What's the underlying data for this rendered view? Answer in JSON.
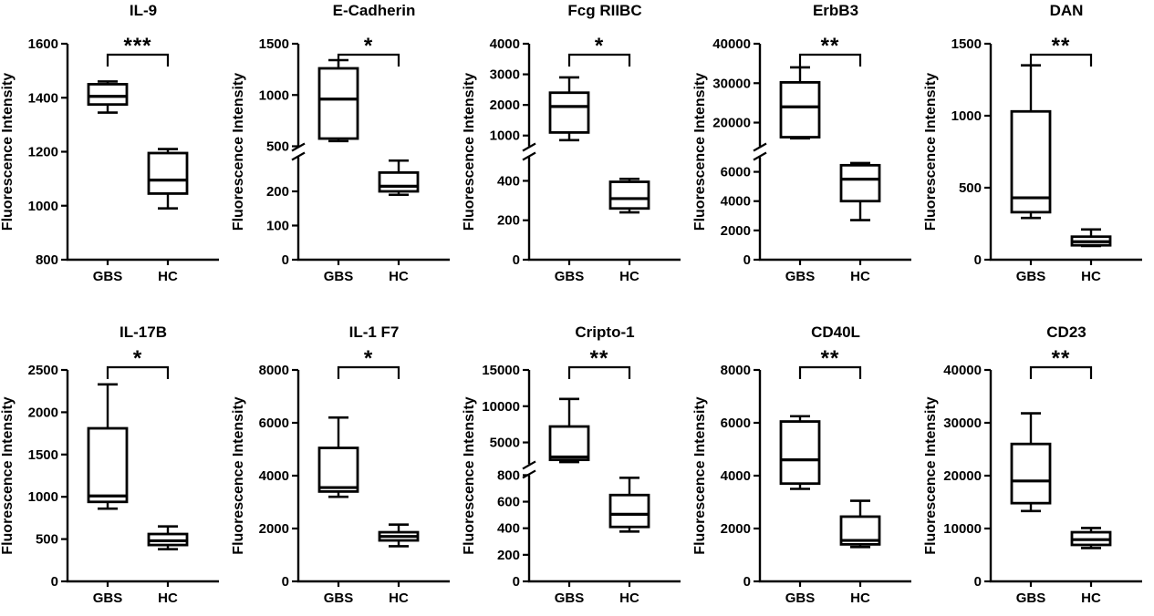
{
  "figure": {
    "ylabel": "Fluorescence Intensity",
    "categories": [
      "GBS",
      "HC"
    ],
    "colors": {
      "stroke": "#000000",
      "box_fill": "#ffffff",
      "background": "#ffffff"
    }
  },
  "chart_data": [
    {
      "type": "box",
      "title": "IL-9",
      "significance": "***",
      "ylabel": "Fluorescence Intensity",
      "categories": [
        "GBS",
        "HC"
      ],
      "axis_segments": [
        {
          "range": [
            800,
            1600
          ],
          "ticks": [
            800,
            1000,
            1200,
            1400,
            1600
          ],
          "frac": 1
        }
      ],
      "boxes": [
        {
          "group": "GBS",
          "min": 1345,
          "q1": 1375,
          "median": 1405,
          "q3": 1450,
          "max": 1460
        },
        {
          "group": "HC",
          "min": 990,
          "q1": 1045,
          "median": 1095,
          "q3": 1195,
          "max": 1210
        }
      ]
    },
    {
      "type": "box",
      "title": "E-Cadherin",
      "significance": "*",
      "ylabel": "Fluorescence Intensity",
      "categories": [
        "GBS",
        "HC"
      ],
      "axis_segments": [
        {
          "range": [
            0,
            300
          ],
          "ticks": [
            0,
            100,
            200
          ],
          "frac": 0.5
        },
        {
          "range": [
            500,
            1500
          ],
          "ticks": [
            500,
            1000,
            1500
          ],
          "frac": 0.5
        }
      ],
      "boxes": [
        {
          "group": "GBS",
          "min": 550,
          "q1": 575,
          "median": 960,
          "q3": 1260,
          "max": 1340
        },
        {
          "group": "HC",
          "min": 190,
          "q1": 200,
          "median": 215,
          "q3": 255,
          "max": 290
        }
      ]
    },
    {
      "type": "box",
      "title": "Fcg RIIBC",
      "significance": "*",
      "ylabel": "Fluorescence Intensity",
      "categories": [
        "GBS",
        "HC"
      ],
      "axis_segments": [
        {
          "range": [
            0,
            520
          ],
          "ticks": [
            0,
            200,
            400
          ],
          "frac": 0.5
        },
        {
          "range": [
            650,
            4000
          ],
          "ticks": [
            1000,
            2000,
            3000,
            4000
          ],
          "frac": 0.5
        }
      ],
      "boxes": [
        {
          "group": "GBS",
          "min": 850,
          "q1": 1100,
          "median": 1950,
          "q3": 2400,
          "max": 2900
        },
        {
          "group": "HC",
          "min": 240,
          "q1": 260,
          "median": 310,
          "q3": 395,
          "max": 410
        }
      ]
    },
    {
      "type": "box",
      "title": "ErbB3",
      "significance": "**",
      "ylabel": "Fluorescence Intensity",
      "categories": [
        "GBS",
        "HC"
      ],
      "axis_segments": [
        {
          "range": [
            0,
            7000
          ],
          "ticks": [
            0,
            2000,
            4000,
            6000
          ],
          "frac": 0.5
        },
        {
          "range": [
            14000,
            40000
          ],
          "ticks": [
            20000,
            30000,
            40000
          ],
          "frac": 0.5
        }
      ],
      "boxes": [
        {
          "group": "GBS",
          "min": 16000,
          "q1": 16300,
          "median": 24000,
          "q3": 30200,
          "max": 34000
        },
        {
          "group": "HC",
          "min": 2700,
          "q1": 4000,
          "median": 5500,
          "q3": 6450,
          "max": 6600
        }
      ]
    },
    {
      "type": "box",
      "title": "DAN",
      "significance": "**",
      "ylabel": "Fluorescence Intensity",
      "categories": [
        "GBS",
        "HC"
      ],
      "axis_segments": [
        {
          "range": [
            0,
            1500
          ],
          "ticks": [
            0,
            500,
            1000,
            1500
          ],
          "frac": 1
        }
      ],
      "boxes": [
        {
          "group": "GBS",
          "min": 290,
          "q1": 330,
          "median": 430,
          "q3": 1030,
          "max": 1350
        },
        {
          "group": "HC",
          "min": 95,
          "q1": 100,
          "median": 125,
          "q3": 160,
          "max": 210
        }
      ]
    },
    {
      "type": "box",
      "title": "IL-17B",
      "significance": "*",
      "ylabel": "Fluorescence Intensity",
      "categories": [
        "GBS",
        "HC"
      ],
      "axis_segments": [
        {
          "range": [
            0,
            2500
          ],
          "ticks": [
            0,
            500,
            1000,
            1500,
            2000,
            2500
          ],
          "frac": 1
        }
      ],
      "boxes": [
        {
          "group": "GBS",
          "min": 860,
          "q1": 940,
          "median": 1010,
          "q3": 1810,
          "max": 2330
        },
        {
          "group": "HC",
          "min": 380,
          "q1": 430,
          "median": 480,
          "q3": 560,
          "max": 650
        }
      ]
    },
    {
      "type": "box",
      "title": "IL-1 F7",
      "significance": "*",
      "ylabel": "Fluorescence Intensity",
      "categories": [
        "GBS",
        "HC"
      ],
      "axis_segments": [
        {
          "range": [
            0,
            8000
          ],
          "ticks": [
            0,
            2000,
            4000,
            6000,
            8000
          ],
          "frac": 1
        }
      ],
      "boxes": [
        {
          "group": "GBS",
          "min": 3200,
          "q1": 3400,
          "median": 3550,
          "q3": 5050,
          "max": 6200
        },
        {
          "group": "HC",
          "min": 1330,
          "q1": 1550,
          "median": 1700,
          "q3": 1860,
          "max": 2150
        }
      ]
    },
    {
      "type": "box",
      "title": "Cripto-1",
      "significance": "**",
      "ylabel": "Fluorescence Intensity",
      "categories": [
        "GBS",
        "HC"
      ],
      "axis_segments": [
        {
          "range": [
            0,
            800
          ],
          "ticks": [
            0,
            200,
            400,
            600,
            800
          ],
          "frac": 0.53
        },
        {
          "range": [
            2000,
            15000
          ],
          "ticks": [
            5000,
            10000,
            15000
          ],
          "frac": 0.47
        }
      ],
      "boxes": [
        {
          "group": "GBS",
          "min": 2300,
          "q1": 2600,
          "median": 3000,
          "q3": 7200,
          "max": 11000
        },
        {
          "group": "HC",
          "min": 375,
          "q1": 410,
          "median": 505,
          "q3": 650,
          "max": 780
        }
      ]
    },
    {
      "type": "box",
      "title": "CD40L",
      "significance": "**",
      "ylabel": "Fluorescence Intensity",
      "categories": [
        "GBS",
        "HC"
      ],
      "axis_segments": [
        {
          "range": [
            0,
            8000
          ],
          "ticks": [
            0,
            2000,
            4000,
            6000,
            8000
          ],
          "frac": 1
        }
      ],
      "boxes": [
        {
          "group": "GBS",
          "min": 3500,
          "q1": 3700,
          "median": 4600,
          "q3": 6050,
          "max": 6250
        },
        {
          "group": "HC",
          "min": 1300,
          "q1": 1400,
          "median": 1550,
          "q3": 2450,
          "max": 3050
        }
      ]
    },
    {
      "type": "box",
      "title": "CD23",
      "significance": "**",
      "ylabel": "Fluorescence Intensity",
      "categories": [
        "GBS",
        "HC"
      ],
      "axis_segments": [
        {
          "range": [
            0,
            40000
          ],
          "ticks": [
            0,
            10000,
            20000,
            30000,
            40000
          ],
          "frac": 1
        }
      ],
      "boxes": [
        {
          "group": "GBS",
          "min": 13300,
          "q1": 14800,
          "median": 19000,
          "q3": 26000,
          "max": 31800
        },
        {
          "group": "HC",
          "min": 6300,
          "q1": 6900,
          "median": 7900,
          "q3": 9300,
          "max": 10100
        }
      ]
    }
  ]
}
